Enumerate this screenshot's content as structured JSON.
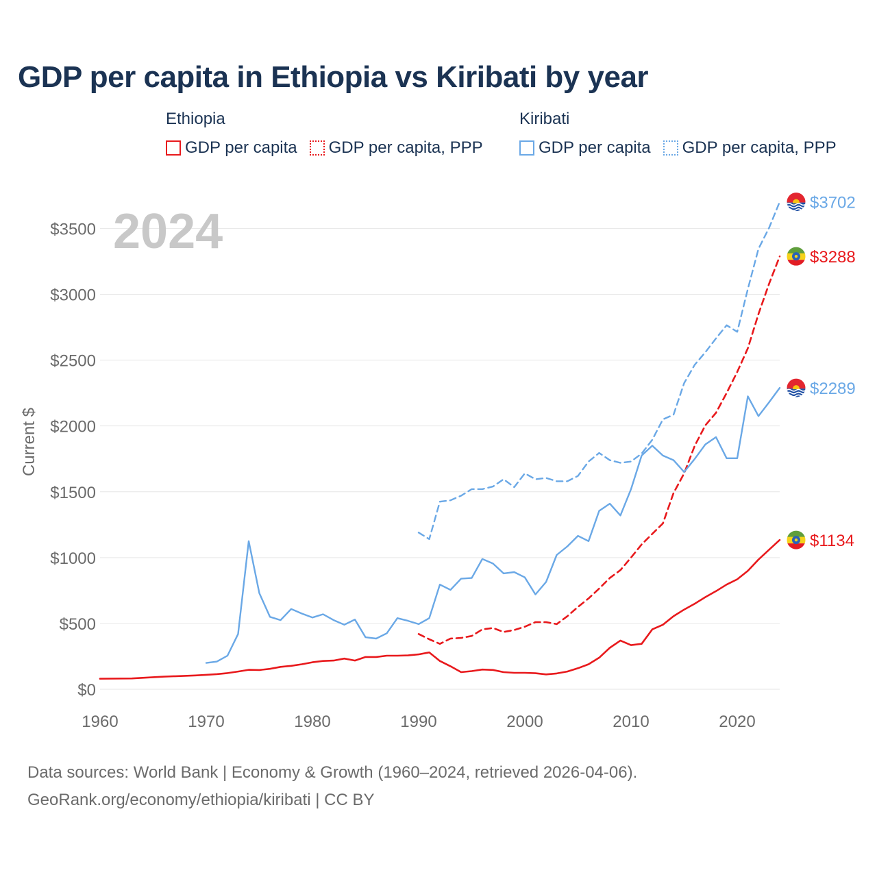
{
  "title": "GDP per capita in Ethiopia vs Kiribati by year",
  "legend": {
    "groups": [
      {
        "name": "Ethiopia",
        "color": "#e8191c",
        "items": [
          {
            "label": "GDP per capita",
            "style": "solid"
          },
          {
            "label": "GDP per capita, PPP",
            "style": "dotted"
          }
        ]
      },
      {
        "name": "Kiribati",
        "color": "#6aa8e6",
        "items": [
          {
            "label": "GDP per capita",
            "style": "solid"
          },
          {
            "label": "GDP per capita, PPP",
            "style": "dotted"
          }
        ]
      }
    ]
  },
  "footer": {
    "line1": "Data sources: World Bank | Economy & Growth (1960–2024, retrieved 2026-04-06).",
    "line2": "GeoRank.org/economy/ethiopia/kiribati | CC BY"
  },
  "chart_data": {
    "type": "line",
    "title": "GDP per capita in Ethiopia vs Kiribati by year",
    "year_label": "2024",
    "xlabel": "",
    "ylabel": "Current $",
    "xlim": [
      1960,
      2024
    ],
    "ylim": [
      0,
      3700
    ],
    "x_ticks": [
      1960,
      1970,
      1980,
      1990,
      2000,
      2010,
      2020
    ],
    "y_ticks": [
      0,
      500,
      1000,
      1500,
      2000,
      2500,
      3000,
      3500
    ],
    "y_tick_labels": [
      "$0",
      "$500",
      "$1000",
      "$1500",
      "$2000",
      "$2500",
      "$3000",
      "$3500"
    ],
    "grid": true,
    "series": [
      {
        "name": "Ethiopia GDP per capita",
        "country": "Ethiopia",
        "color": "#e8191c",
        "dash": "solid",
        "end_label": "$1134",
        "points": [
          [
            1960,
            80
          ],
          [
            1963,
            82
          ],
          [
            1966,
            96
          ],
          [
            1969,
            105
          ],
          [
            1970,
            110
          ],
          [
            1971,
            115
          ],
          [
            1972,
            123
          ],
          [
            1973,
            135
          ],
          [
            1974,
            148
          ],
          [
            1975,
            146
          ],
          [
            1976,
            155
          ],
          [
            1977,
            170
          ],
          [
            1978,
            178
          ],
          [
            1979,
            190
          ],
          [
            1980,
            205
          ],
          [
            1981,
            215
          ],
          [
            1982,
            218
          ],
          [
            1983,
            233
          ],
          [
            1984,
            218
          ],
          [
            1985,
            245
          ],
          [
            1986,
            245
          ],
          [
            1987,
            255
          ],
          [
            1988,
            255
          ],
          [
            1989,
            257
          ],
          [
            1990,
            265
          ],
          [
            1991,
            280
          ],
          [
            1992,
            215
          ],
          [
            1993,
            175
          ],
          [
            1994,
            130
          ],
          [
            1995,
            138
          ],
          [
            1996,
            150
          ],
          [
            1997,
            147
          ],
          [
            1998,
            130
          ],
          [
            1999,
            125
          ],
          [
            2000,
            125
          ],
          [
            2001,
            122
          ],
          [
            2002,
            113
          ],
          [
            2003,
            120
          ],
          [
            2004,
            135
          ],
          [
            2005,
            160
          ],
          [
            2006,
            190
          ],
          [
            2007,
            240
          ],
          [
            2008,
            315
          ],
          [
            2009,
            370
          ],
          [
            2010,
            335
          ],
          [
            2011,
            345
          ],
          [
            2012,
            455
          ],
          [
            2013,
            490
          ],
          [
            2014,
            555
          ],
          [
            2015,
            605
          ],
          [
            2016,
            650
          ],
          [
            2017,
            700
          ],
          [
            2018,
            745
          ],
          [
            2019,
            795
          ],
          [
            2020,
            835
          ],
          [
            2021,
            900
          ],
          [
            2022,
            985
          ],
          [
            2023,
            1060
          ],
          [
            2024,
            1134
          ]
        ]
      },
      {
        "name": "Ethiopia GDP per capita, PPP",
        "country": "Ethiopia",
        "color": "#e8191c",
        "dash": "dashed",
        "end_label": "$3288",
        "points": [
          [
            1990,
            420
          ],
          [
            1991,
            380
          ],
          [
            1992,
            345
          ],
          [
            1993,
            385
          ],
          [
            1994,
            390
          ],
          [
            1995,
            405
          ],
          [
            1996,
            455
          ],
          [
            1997,
            465
          ],
          [
            1998,
            435
          ],
          [
            1999,
            450
          ],
          [
            2000,
            475
          ],
          [
            2001,
            510
          ],
          [
            2002,
            510
          ],
          [
            2003,
            495
          ],
          [
            2004,
            555
          ],
          [
            2005,
            625
          ],
          [
            2006,
            690
          ],
          [
            2007,
            765
          ],
          [
            2008,
            845
          ],
          [
            2009,
            905
          ],
          [
            2010,
            1000
          ],
          [
            2011,
            1100
          ],
          [
            2012,
            1180
          ],
          [
            2013,
            1260
          ],
          [
            2014,
            1490
          ],
          [
            2015,
            1640
          ],
          [
            2016,
            1850
          ],
          [
            2017,
            2005
          ],
          [
            2018,
            2100
          ],
          [
            2019,
            2250
          ],
          [
            2020,
            2410
          ],
          [
            2021,
            2590
          ],
          [
            2022,
            2850
          ],
          [
            2023,
            3080
          ],
          [
            2024,
            3288
          ]
        ]
      },
      {
        "name": "Kiribati GDP per capita",
        "country": "Kiribati",
        "color": "#6aa8e6",
        "dash": "solid",
        "end_label": "$2289",
        "points": [
          [
            1970,
            200
          ],
          [
            1971,
            210
          ],
          [
            1972,
            255
          ],
          [
            1973,
            420
          ],
          [
            1974,
            1125
          ],
          [
            1975,
            730
          ],
          [
            1976,
            550
          ],
          [
            1977,
            525
          ],
          [
            1978,
            610
          ],
          [
            1979,
            575
          ],
          [
            1980,
            545
          ],
          [
            1981,
            570
          ],
          [
            1982,
            525
          ],
          [
            1983,
            490
          ],
          [
            1984,
            530
          ],
          [
            1985,
            395
          ],
          [
            1986,
            385
          ],
          [
            1987,
            425
          ],
          [
            1988,
            540
          ],
          [
            1989,
            520
          ],
          [
            1990,
            495
          ],
          [
            1991,
            540
          ],
          [
            1992,
            795
          ],
          [
            1993,
            755
          ],
          [
            1994,
            840
          ],
          [
            1995,
            845
          ],
          [
            1996,
            990
          ],
          [
            1997,
            955
          ],
          [
            1998,
            880
          ],
          [
            1999,
            890
          ],
          [
            2000,
            850
          ],
          [
            2001,
            720
          ],
          [
            2002,
            815
          ],
          [
            2003,
            1020
          ],
          [
            2004,
            1085
          ],
          [
            2005,
            1165
          ],
          [
            2006,
            1125
          ],
          [
            2007,
            1355
          ],
          [
            2008,
            1410
          ],
          [
            2009,
            1320
          ],
          [
            2010,
            1520
          ],
          [
            2011,
            1775
          ],
          [
            2012,
            1850
          ],
          [
            2013,
            1775
          ],
          [
            2014,
            1740
          ],
          [
            2015,
            1650
          ],
          [
            2016,
            1750
          ],
          [
            2017,
            1860
          ],
          [
            2018,
            1915
          ],
          [
            2019,
            1755
          ],
          [
            2020,
            1755
          ],
          [
            2021,
            2225
          ],
          [
            2022,
            2075
          ],
          [
            2023,
            2180
          ],
          [
            2024,
            2289
          ]
        ]
      },
      {
        "name": "Kiribati GDP per capita, PPP",
        "country": "Kiribati",
        "color": "#6aa8e6",
        "dash": "dashed",
        "end_label": "$3702",
        "points": [
          [
            1990,
            1190
          ],
          [
            1991,
            1140
          ],
          [
            1992,
            1425
          ],
          [
            1993,
            1435
          ],
          [
            1994,
            1470
          ],
          [
            1995,
            1520
          ],
          [
            1996,
            1520
          ],
          [
            1997,
            1540
          ],
          [
            1998,
            1595
          ],
          [
            1999,
            1535
          ],
          [
            2000,
            1640
          ],
          [
            2001,
            1595
          ],
          [
            2002,
            1605
          ],
          [
            2003,
            1580
          ],
          [
            2004,
            1580
          ],
          [
            2005,
            1620
          ],
          [
            2006,
            1730
          ],
          [
            2007,
            1795
          ],
          [
            2008,
            1740
          ],
          [
            2009,
            1720
          ],
          [
            2010,
            1730
          ],
          [
            2011,
            1790
          ],
          [
            2012,
            1895
          ],
          [
            2013,
            2050
          ],
          [
            2014,
            2085
          ],
          [
            2015,
            2325
          ],
          [
            2016,
            2465
          ],
          [
            2017,
            2560
          ],
          [
            2018,
            2665
          ],
          [
            2019,
            2765
          ],
          [
            2020,
            2715
          ],
          [
            2021,
            3040
          ],
          [
            2022,
            3345
          ],
          [
            2023,
            3505
          ],
          [
            2024,
            3702
          ]
        ]
      }
    ]
  }
}
